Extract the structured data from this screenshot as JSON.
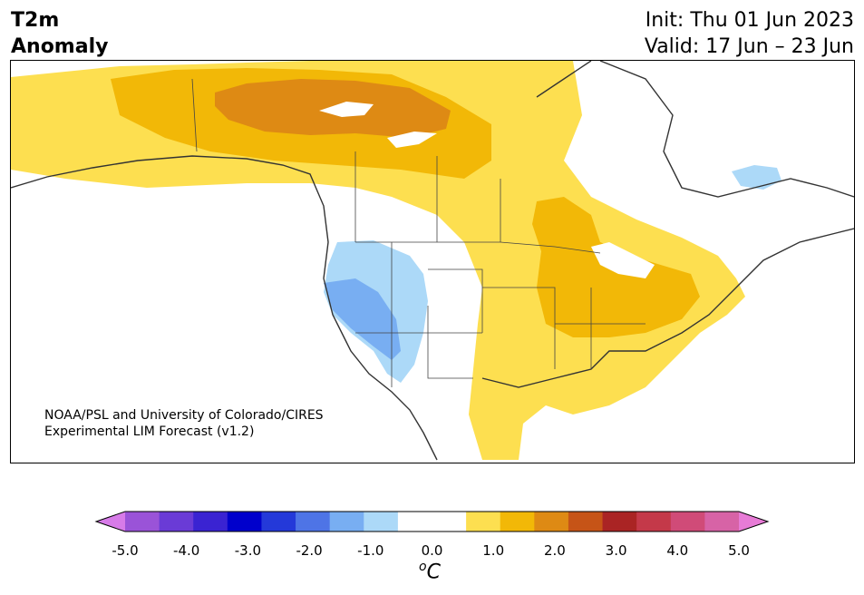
{
  "title": {
    "line1": "T2m",
    "line2": "Anomaly"
  },
  "init_text": "Init: Thu 01 Jun 2023",
  "valid_text": "Valid: 17 Jun – 23 Jun",
  "credit": {
    "line1": "NOAA/PSL and University of Colorado/CIRES",
    "line2": "Experimental LIM Forecast (v1.2)"
  },
  "colorbar": {
    "unit_base": "C",
    "unit_sup": "o",
    "tick_labels": [
      "-5.0",
      "-4.0",
      "-3.0",
      "-2.0",
      "-1.0",
      "0.0",
      "1.0",
      "2.0",
      "3.0",
      "4.0",
      "5.0"
    ],
    "colors": [
      "#d77be8",
      "#9a53d8",
      "#6a3bd6",
      "#3a23d2",
      "#0000cc",
      "#2439d9",
      "#4e74e6",
      "#78aef2",
      "#acd9f8",
      "#ffffff",
      "#ffffff",
      "#fddf50",
      "#f2b807",
      "#de8a14",
      "#c65417",
      "#aa2424",
      "#c43949",
      "#d04b78",
      "#d763a6",
      "#e77bd6"
    ],
    "values": [
      -5.0,
      5.0
    ]
  }
}
